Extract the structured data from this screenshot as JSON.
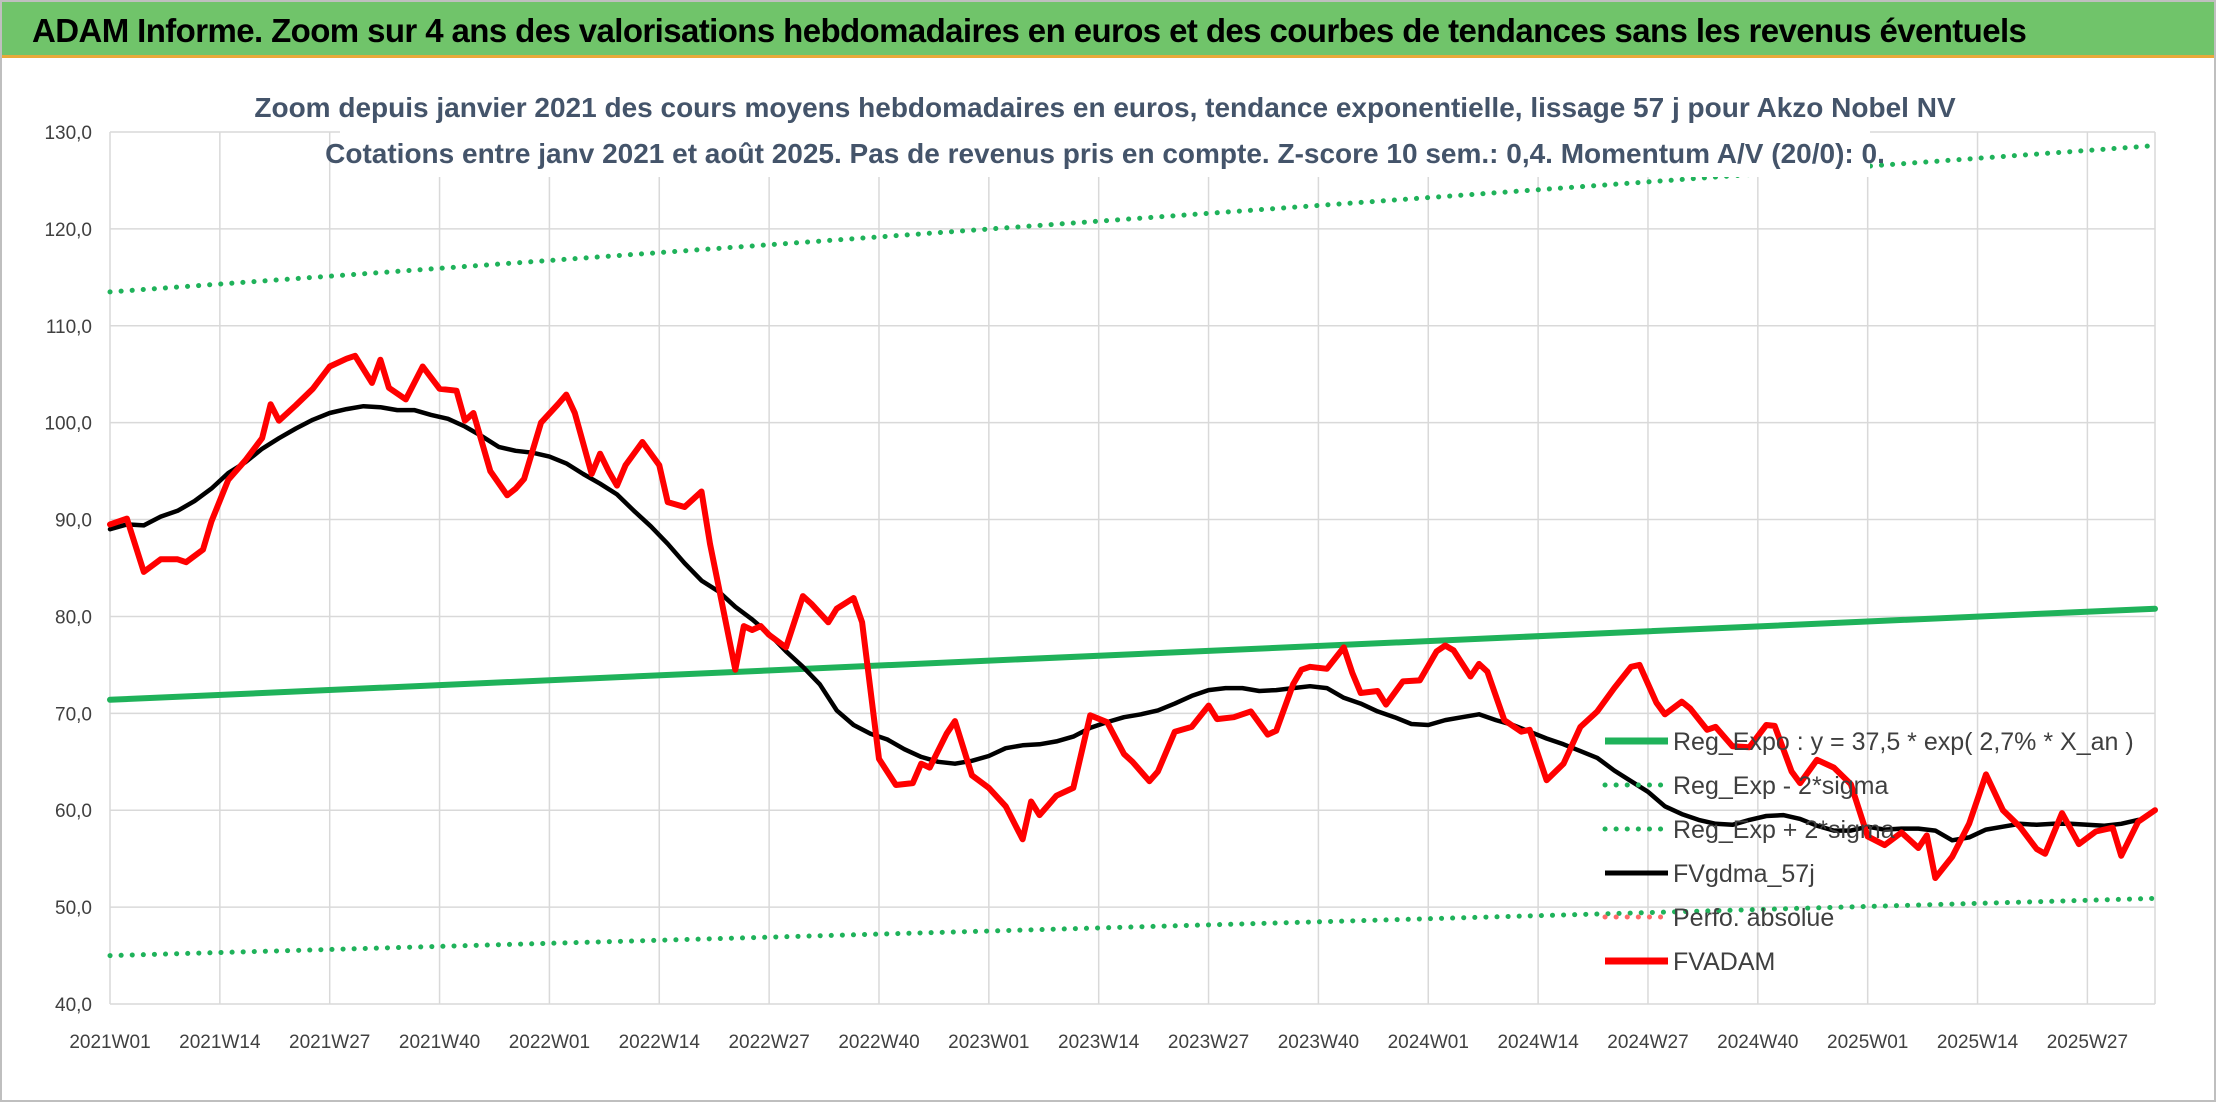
{
  "header": {
    "banner": "ADAM Informe. Zoom sur 4 ans des valorisations hebdomadaires en euros et des courbes de tendances sans les revenus éventuels"
  },
  "chart_data": {
    "type": "line",
    "title": "Zoom depuis janvier 2021 des cours moyens hebdomadaires en euros, tendance exponentielle, lissage 57 j pour Akzo Nobel NV",
    "subtitle": "Cotations entre janv 2021 et août 2025. Pas de revenus pris en compte. Z-score 10 sem.: 0,4. Momentum A/V (20/0): 0.",
    "ylim": [
      40,
      130
    ],
    "y_ticks": [
      "40,0",
      "50,0",
      "60,0",
      "70,0",
      "80,0",
      "90,0",
      "100,0",
      "110,0",
      "120,0",
      "130,0"
    ],
    "x_ticks": [
      "2021W01",
      "2021W14",
      "2021W27",
      "2021W40",
      "2022W01",
      "2022W14",
      "2022W27",
      "2022W40",
      "2023W01",
      "2023W14",
      "2023W27",
      "2023W40",
      "2024W01",
      "2024W14",
      "2024W27",
      "2024W40",
      "2025W01",
      "2025W14",
      "2025W27"
    ],
    "grid": true,
    "legend_position": "bottom-right",
    "series": [
      {
        "name": "Reg_Expo : y = 37,5 * exp( 2,7% *  X_an )",
        "color": "#1fb25a",
        "style": "solid",
        "points": [
          [
            0,
            71.4
          ],
          [
            242,
            80.8
          ]
        ]
      },
      {
        "name": "Reg_Exp - 2*sigma",
        "color": "#1fb25a",
        "style": "dotted",
        "points": [
          [
            0,
            45.0
          ],
          [
            242,
            50.9
          ]
        ]
      },
      {
        "name": "Reg_Exp + 2*sigma",
        "color": "#1fb25a",
        "style": "dotted",
        "points": [
          [
            0,
            113.5
          ],
          [
            242,
            128.6
          ]
        ]
      },
      {
        "name": "FVgdma_57j",
        "color": "#000000",
        "style": "solid",
        "points": [
          [
            0,
            89.0
          ],
          [
            2,
            89.5
          ],
          [
            4,
            89.4
          ],
          [
            6,
            90.3
          ],
          [
            8,
            90.9
          ],
          [
            10,
            91.9
          ],
          [
            12,
            93.2
          ],
          [
            14,
            94.8
          ],
          [
            16,
            95.9
          ],
          [
            18,
            97.3
          ],
          [
            20,
            98.4
          ],
          [
            22,
            99.4
          ],
          [
            24,
            100.3
          ],
          [
            26,
            101.0
          ],
          [
            28,
            101.4
          ],
          [
            30,
            101.7
          ],
          [
            32,
            101.6
          ],
          [
            34,
            101.3
          ],
          [
            36,
            101.3
          ],
          [
            38,
            100.8
          ],
          [
            40,
            100.4
          ],
          [
            42,
            99.6
          ],
          [
            44,
            98.6
          ],
          [
            46,
            97.5
          ],
          [
            48,
            97.1
          ],
          [
            50,
            96.9
          ],
          [
            52,
            96.5
          ],
          [
            54,
            95.8
          ],
          [
            56,
            94.7
          ],
          [
            58,
            93.7
          ],
          [
            60,
            92.6
          ],
          [
            62,
            90.9
          ],
          [
            64,
            89.3
          ],
          [
            66,
            87.5
          ],
          [
            68,
            85.5
          ],
          [
            70,
            83.7
          ],
          [
            72,
            82.6
          ],
          [
            74,
            81.0
          ],
          [
            76,
            79.7
          ],
          [
            78,
            78.2
          ],
          [
            80,
            76.4
          ],
          [
            82,
            74.8
          ],
          [
            84,
            73.0
          ],
          [
            86,
            70.3
          ],
          [
            88,
            68.8
          ],
          [
            90,
            67.9
          ],
          [
            92,
            67.3
          ],
          [
            94,
            66.3
          ],
          [
            96,
            65.5
          ],
          [
            98,
            65.0
          ],
          [
            100,
            64.8
          ],
          [
            102,
            65.1
          ],
          [
            104,
            65.6
          ],
          [
            106,
            66.4
          ],
          [
            108,
            66.7
          ],
          [
            110,
            66.8
          ],
          [
            112,
            67.1
          ],
          [
            114,
            67.6
          ],
          [
            116,
            68.5
          ],
          [
            118,
            69.1
          ],
          [
            120,
            69.6
          ],
          [
            122,
            69.9
          ],
          [
            124,
            70.3
          ],
          [
            126,
            71.0
          ],
          [
            128,
            71.8
          ],
          [
            130,
            72.4
          ],
          [
            132,
            72.6
          ],
          [
            134,
            72.6
          ],
          [
            136,
            72.3
          ],
          [
            138,
            72.4
          ],
          [
            140,
            72.6
          ],
          [
            142,
            72.8
          ],
          [
            144,
            72.6
          ],
          [
            146,
            71.6
          ],
          [
            148,
            71.0
          ],
          [
            150,
            70.2
          ],
          [
            152,
            69.6
          ],
          [
            154,
            68.9
          ],
          [
            156,
            68.8
          ],
          [
            158,
            69.3
          ],
          [
            160,
            69.6
          ],
          [
            162,
            69.9
          ],
          [
            164,
            69.3
          ],
          [
            166,
            68.8
          ],
          [
            168,
            68.1
          ],
          [
            170,
            67.4
          ],
          [
            172,
            66.8
          ],
          [
            174,
            66.1
          ],
          [
            176,
            65.4
          ],
          [
            178,
            64.1
          ],
          [
            180,
            63.0
          ],
          [
            182,
            61.9
          ],
          [
            184,
            60.4
          ],
          [
            186,
            59.6
          ],
          [
            188,
            59.0
          ],
          [
            190,
            58.6
          ],
          [
            192,
            58.5
          ],
          [
            194,
            59.0
          ],
          [
            196,
            59.4
          ],
          [
            198,
            59.5
          ],
          [
            200,
            59.1
          ],
          [
            202,
            58.4
          ],
          [
            204,
            57.9
          ],
          [
            206,
            57.9
          ],
          [
            208,
            58.3
          ],
          [
            210,
            58.0
          ],
          [
            212,
            58.1
          ],
          [
            214,
            58.1
          ],
          [
            216,
            57.9
          ],
          [
            218,
            56.9
          ],
          [
            220,
            57.2
          ],
          [
            222,
            58.0
          ],
          [
            224,
            58.3
          ],
          [
            226,
            58.6
          ],
          [
            228,
            58.5
          ],
          [
            230,
            58.6
          ],
          [
            232,
            58.6
          ],
          [
            234,
            58.5
          ],
          [
            236,
            58.4
          ],
          [
            238,
            58.6
          ],
          [
            240,
            59.0
          ]
        ]
      },
      {
        "name": "Perfo. absolue",
        "color": "#ff6a6a",
        "style": "dotted",
        "points": []
      },
      {
        "name": "FVADAM",
        "color": "#ff0000",
        "style": "solid",
        "points": [
          [
            0,
            89.5
          ],
          [
            2,
            90.1
          ],
          [
            4,
            84.6
          ],
          [
            6,
            85.9
          ],
          [
            8,
            85.9
          ],
          [
            9,
            85.6
          ],
          [
            11,
            86.9
          ],
          [
            12,
            89.8
          ],
          [
            14,
            94.1
          ],
          [
            16,
            96.1
          ],
          [
            18,
            98.4
          ],
          [
            19,
            101.9
          ],
          [
            20,
            100.2
          ],
          [
            22,
            101.8
          ],
          [
            24,
            103.5
          ],
          [
            26,
            105.8
          ],
          [
            28,
            106.6
          ],
          [
            29,
            106.9
          ],
          [
            31,
            104.1
          ],
          [
            32,
            106.5
          ],
          [
            33,
            103.6
          ],
          [
            35,
            102.4
          ],
          [
            37,
            105.8
          ],
          [
            39,
            103.5
          ],
          [
            41,
            103.3
          ],
          [
            42,
            100.2
          ],
          [
            43,
            101.0
          ],
          [
            45,
            95.0
          ],
          [
            47,
            92.5
          ],
          [
            48,
            93.2
          ],
          [
            49,
            94.2
          ],
          [
            51,
            100.0
          ],
          [
            53,
            101.9
          ],
          [
            54,
            102.9
          ],
          [
            55,
            101.0
          ],
          [
            57,
            94.7
          ],
          [
            58,
            96.8
          ],
          [
            59,
            95.0
          ],
          [
            60,
            93.5
          ],
          [
            61,
            95.6
          ],
          [
            63,
            98.0
          ],
          [
            65,
            95.6
          ],
          [
            66,
            91.8
          ],
          [
            68,
            91.3
          ],
          [
            70,
            92.9
          ],
          [
            71,
            87.5
          ],
          [
            72,
            83.2
          ],
          [
            74,
            74.5
          ],
          [
            75,
            79.0
          ],
          [
            76,
            78.6
          ],
          [
            77,
            79.0
          ],
          [
            78,
            78.1
          ],
          [
            80,
            76.8
          ],
          [
            82,
            82.1
          ],
          [
            83,
            81.3
          ],
          [
            85,
            79.4
          ],
          [
            86,
            80.8
          ],
          [
            88,
            81.9
          ],
          [
            89,
            79.4
          ],
          [
            91,
            65.3
          ],
          [
            93,
            62.6
          ],
          [
            95,
            62.8
          ],
          [
            96,
            64.8
          ],
          [
            97,
            64.4
          ],
          [
            99,
            67.9
          ],
          [
            100,
            69.2
          ],
          [
            102,
            63.6
          ],
          [
            104,
            62.3
          ],
          [
            106,
            60.4
          ],
          [
            108,
            57.0
          ],
          [
            109,
            60.9
          ],
          [
            110,
            59.5
          ],
          [
            112,
            61.5
          ],
          [
            114,
            62.3
          ],
          [
            116,
            69.8
          ],
          [
            118,
            69.1
          ],
          [
            120,
            65.8
          ],
          [
            121,
            65.0
          ],
          [
            123,
            63.0
          ],
          [
            124,
            64.0
          ],
          [
            126,
            68.1
          ],
          [
            128,
            68.6
          ],
          [
            130,
            70.8
          ],
          [
            131,
            69.4
          ],
          [
            133,
            69.6
          ],
          [
            135,
            70.2
          ],
          [
            137,
            67.8
          ],
          [
            138,
            68.2
          ],
          [
            140,
            73.0
          ],
          [
            141,
            74.5
          ],
          [
            142,
            74.8
          ],
          [
            144,
            74.6
          ],
          [
            146,
            76.8
          ],
          [
            147,
            74.2
          ],
          [
            148,
            72.1
          ],
          [
            150,
            72.3
          ],
          [
            151,
            70.9
          ],
          [
            153,
            73.3
          ],
          [
            155,
            73.4
          ],
          [
            157,
            76.4
          ],
          [
            158,
            77.0
          ],
          [
            159,
            76.5
          ],
          [
            161,
            73.8
          ],
          [
            162,
            75.1
          ],
          [
            163,
            74.3
          ],
          [
            165,
            69.3
          ],
          [
            167,
            68.1
          ],
          [
            168,
            68.3
          ],
          [
            170,
            63.1
          ],
          [
            172,
            64.8
          ],
          [
            174,
            68.6
          ],
          [
            176,
            70.2
          ],
          [
            178,
            72.6
          ],
          [
            180,
            74.8
          ],
          [
            181,
            75.0
          ],
          [
            183,
            71.1
          ],
          [
            184,
            69.9
          ],
          [
            186,
            71.2
          ],
          [
            187,
            70.5
          ],
          [
            189,
            68.3
          ],
          [
            190,
            68.6
          ],
          [
            192,
            66.6
          ],
          [
            194,
            66.5
          ],
          [
            196,
            68.8
          ],
          [
            197,
            68.7
          ],
          [
            199,
            64.0
          ],
          [
            200,
            62.8
          ],
          [
            202,
            65.2
          ],
          [
            204,
            64.4
          ],
          [
            206,
            62.7
          ],
          [
            208,
            57.3
          ],
          [
            210,
            56.4
          ],
          [
            212,
            57.7
          ],
          [
            214,
            56.1
          ],
          [
            215,
            57.4
          ],
          [
            216,
            53.0
          ],
          [
            218,
            55.2
          ],
          [
            220,
            58.6
          ],
          [
            222,
            63.7
          ],
          [
            224,
            60.0
          ],
          [
            226,
            58.3
          ],
          [
            228,
            56.0
          ],
          [
            229,
            55.5
          ],
          [
            231,
            59.7
          ],
          [
            233,
            56.5
          ],
          [
            235,
            57.8
          ],
          [
            237,
            58.2
          ],
          [
            238,
            55.3
          ],
          [
            240,
            58.8
          ],
          [
            242,
            60.0
          ]
        ]
      }
    ]
  }
}
